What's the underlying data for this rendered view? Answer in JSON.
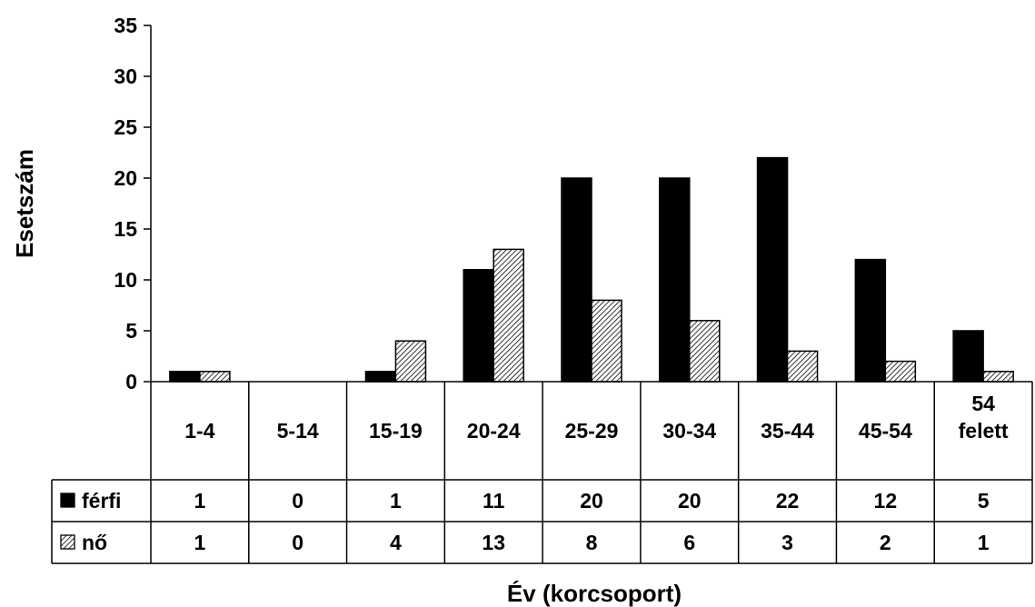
{
  "chart_data": {
    "type": "bar",
    "title": "",
    "xlabel": "Év (korcsoport)",
    "ylabel": "Esetszám",
    "ylim": [
      0,
      35
    ],
    "yticks": [
      0,
      5,
      10,
      15,
      20,
      25,
      30,
      35
    ],
    "grid": false,
    "legend": "data-table",
    "categories": [
      "1-4",
      "5-14",
      "15-19",
      "20-24",
      "25-29",
      "30-34",
      "35-44",
      "45-54",
      "54 felett"
    ],
    "series": [
      {
        "name": "férfi",
        "values": [
          1,
          0,
          1,
          11,
          20,
          20,
          22,
          12,
          5
        ],
        "fill": "solid",
        "color": "#000000"
      },
      {
        "name": "nő",
        "values": [
          1,
          0,
          4,
          13,
          8,
          6,
          3,
          2,
          1
        ],
        "fill": "hatched",
        "color": "#000000"
      }
    ]
  }
}
